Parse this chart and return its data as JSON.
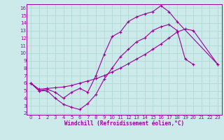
{
  "xlabel": "Windchill (Refroidissement éolien,°C)",
  "xlim": [
    0,
    23
  ],
  "ylim": [
    2,
    16
  ],
  "xticks": [
    0,
    1,
    2,
    3,
    4,
    5,
    6,
    7,
    8,
    9,
    10,
    11,
    12,
    13,
    14,
    15,
    16,
    17,
    18,
    19,
    20,
    21,
    22,
    23
  ],
  "yticks": [
    2,
    3,
    4,
    5,
    6,
    7,
    8,
    9,
    10,
    11,
    12,
    13,
    14,
    15,
    16
  ],
  "background_color": "#cdeaea",
  "grid_color": "#b0d8d8",
  "line_color": "#990099",
  "series0_x": [
    0,
    1,
    2,
    3,
    4,
    5,
    6,
    7,
    8,
    9,
    10,
    11,
    12,
    13,
    14,
    15,
    16,
    17,
    18,
    19,
    20
  ],
  "series0_y": [
    6,
    5,
    5,
    4,
    3.2,
    2.8,
    2.5,
    3.3,
    4.5,
    6.5,
    8.0,
    9.5,
    10.5,
    11.5,
    12.0,
    13.0,
    13.5,
    13.8,
    13.0,
    9.2,
    8.5
  ],
  "series1_x": [
    0,
    1,
    2,
    3,
    4,
    5,
    6,
    7,
    8,
    9,
    10,
    11,
    12,
    13,
    14,
    15,
    16,
    17,
    18,
    23
  ],
  "series1_y": [
    6,
    5.0,
    5.2,
    4.8,
    4.0,
    4.8,
    5.3,
    4.8,
    7.0,
    9.8,
    12.2,
    12.8,
    14.2,
    14.8,
    15.2,
    15.5,
    16.3,
    15.5,
    14.2,
    8.5
  ],
  "series2_x": [
    0,
    1,
    2,
    3,
    4,
    5,
    6,
    7,
    8,
    9,
    10,
    11,
    12,
    13,
    14,
    15,
    16,
    17,
    18,
    19,
    20,
    23
  ],
  "series2_y": [
    6,
    5.2,
    5.3,
    5.4,
    5.5,
    5.7,
    6.0,
    6.3,
    6.6,
    7.0,
    7.5,
    8.0,
    8.6,
    9.2,
    9.8,
    10.5,
    11.2,
    12.0,
    12.8,
    13.2,
    13.0,
    8.5
  ]
}
